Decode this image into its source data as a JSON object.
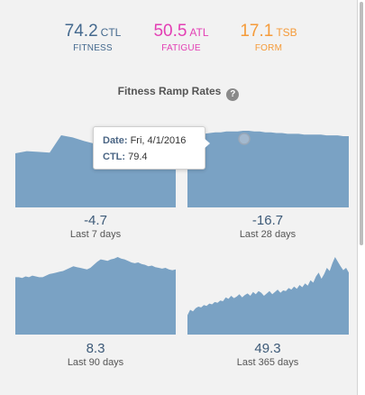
{
  "metrics": {
    "ctl": {
      "value": "74.2",
      "unit": "CTL",
      "label": "FITNESS"
    },
    "atl": {
      "value": "50.5",
      "unit": "ATL",
      "label": "FATIGUE"
    },
    "tsb": {
      "value": "17.1",
      "unit": "TSB",
      "label": "FORM"
    }
  },
  "section": {
    "title": "Fitness Ramp Rates",
    "help_icon": "question-circle-icon",
    "help_glyph": "?"
  },
  "ramps": [
    {
      "value": "-4.7",
      "label": "Last 7 days"
    },
    {
      "value": "-16.7",
      "label": "Last 28 days"
    },
    {
      "value": "8.3",
      "label": "Last 90 days"
    },
    {
      "value": "49.3",
      "label": "Last 365 days"
    }
  ],
  "tooltip": {
    "date_key": "Date:",
    "date_value": "Fri, 4/1/2016",
    "ctl_key": "CTL:",
    "ctl_value": "79.4"
  },
  "colors": {
    "area": "#7aa2c4",
    "ctl": "#44698e",
    "atl": "#e33fb4",
    "tsb": "#f59b3a"
  },
  "chart_data": [
    {
      "type": "area",
      "series": [
        {
          "values": [
            0.75,
            0.78,
            0.77,
            0.76,
            1.0,
            0.97,
            0.92,
            0.88,
            0.84,
            0.83,
            0.8,
            0.78,
            0.75,
            0.72,
            0.7
          ]
        }
      ]
    },
    {
      "type": "area",
      "series": [
        {
          "values": [
            0.93,
            0.94,
            0.95,
            0.96,
            0.97,
            0.98,
            0.98,
            0.99,
            0.99,
            0.99,
            1.0,
            1.0,
            0.99,
            0.99,
            0.98,
            0.98,
            0.97,
            0.97,
            0.96,
            0.96,
            0.96,
            0.95,
            0.95,
            0.95,
            0.95,
            0.94,
            0.94,
            0.94,
            0.93,
            0.93
          ]
        }
      ]
    },
    {
      "type": "area",
      "series": [
        {
          "values": [
            0.74,
            0.74,
            0.73,
            0.75,
            0.74,
            0.76,
            0.75,
            0.74,
            0.74,
            0.76,
            0.78,
            0.79,
            0.8,
            0.81,
            0.82,
            0.84,
            0.86,
            0.88,
            0.87,
            0.86,
            0.85,
            0.84,
            0.86,
            0.9,
            0.94,
            0.97,
            0.96,
            0.95,
            0.97,
            0.98,
            1.0,
            0.98,
            0.97,
            0.95,
            0.93,
            0.92,
            0.93,
            0.91,
            0.9,
            0.88,
            0.89,
            0.87,
            0.86,
            0.85,
            0.86,
            0.84,
            0.83,
            0.84
          ]
        }
      ]
    },
    {
      "type": "area",
      "series": [
        {
          "values": [
            0.25,
            0.32,
            0.3,
            0.34,
            0.36,
            0.35,
            0.38,
            0.37,
            0.4,
            0.39,
            0.42,
            0.41,
            0.44,
            0.43,
            0.48,
            0.46,
            0.5,
            0.47,
            0.49,
            0.52,
            0.48,
            0.51,
            0.53,
            0.5,
            0.55,
            0.52,
            0.56,
            0.54,
            0.5,
            0.53,
            0.56,
            0.52,
            0.55,
            0.58,
            0.54,
            0.57,
            0.56,
            0.6,
            0.58,
            0.62,
            0.59,
            0.64,
            0.61,
            0.66,
            0.63,
            0.7,
            0.67,
            0.75,
            0.8,
            0.72,
            0.78,
            0.86,
            0.82,
            0.92,
            1.0,
            0.94,
            0.88,
            0.83,
            0.86,
            0.8
          ]
        }
      ]
    }
  ]
}
